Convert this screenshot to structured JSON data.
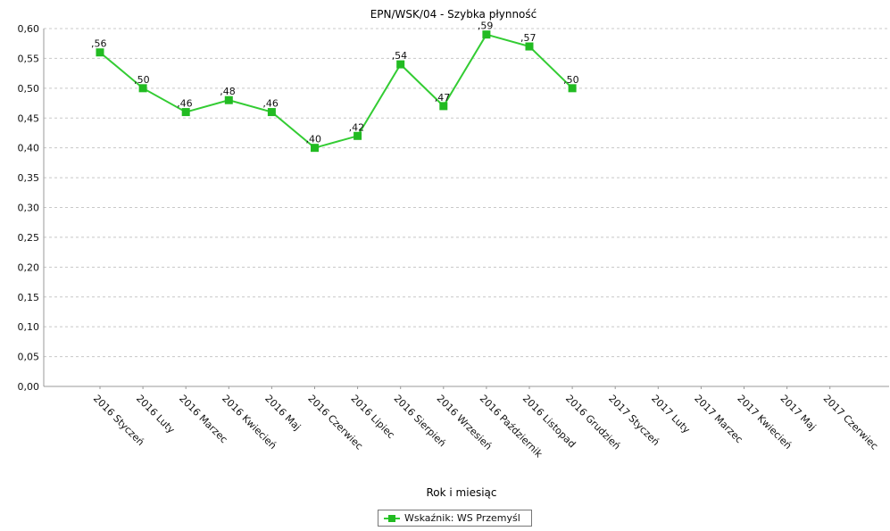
{
  "colors": {
    "series": "#33cc33",
    "marker": "#22bb22",
    "grid": "#c8c8c8",
    "axis": "#999999"
  },
  "chart_data": {
    "type": "line",
    "title": "EPN/WSK/04 - Szybka płynność",
    "xlabel": "Rok i miesiąc",
    "ylabel": "",
    "ylim": [
      0,
      0.6
    ],
    "ytick_step": 0.05,
    "grid": true,
    "legend_position": "bottom",
    "categories": [
      "2016 Styczeń",
      "2016 Luty",
      "2016 Marzec",
      "2016 Kwiecień",
      "2016 Maj",
      "2016 Czerwiec",
      "2016 Lipiec",
      "2016 Sierpień",
      "2016 Wrzesień",
      "2016 Październik",
      "2016 Listopad",
      "2016 Grudzień",
      "2017 Styczeń",
      "2017 Luty",
      "2017 Marzec",
      "2017 Kwiecień",
      "2017 Maj",
      "2017 Czerwiec"
    ],
    "series": [
      {
        "name": "Wskaźnik: WS Przemyśl",
        "values": [
          0.56,
          0.5,
          0.46,
          0.48,
          0.46,
          0.4,
          0.42,
          0.54,
          0.47,
          0.59,
          0.57,
          0.5,
          null,
          null,
          null,
          null,
          null,
          null
        ],
        "labels": [
          ",56",
          ",50",
          ",46",
          ",48",
          ",46",
          ",40",
          ",42",
          ",54",
          ",47",
          ",59",
          ",57",
          ",50",
          "",
          "",
          "",
          "",
          "",
          ""
        ]
      }
    ]
  }
}
